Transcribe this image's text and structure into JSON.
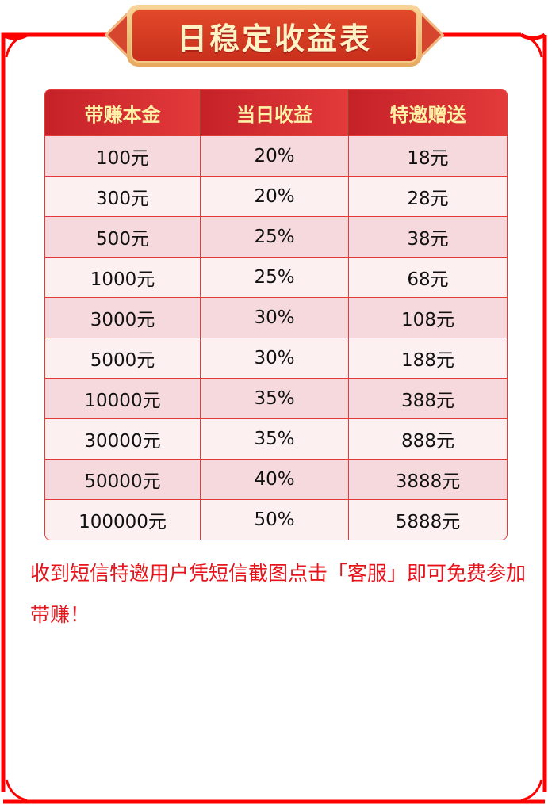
{
  "title": "日稳定收益表",
  "table": {
    "headers": [
      "带赚本金",
      "当日收益",
      "特邀赠送"
    ],
    "rows": [
      [
        "100元",
        "20%",
        "18元"
      ],
      [
        "300元",
        "20%",
        "28元"
      ],
      [
        "500元",
        "25%",
        "38元"
      ],
      [
        "1000元",
        "25%",
        "68元"
      ],
      [
        "3000元",
        "30%",
        "108元"
      ],
      [
        "5000元",
        "30%",
        "188元"
      ],
      [
        "10000元",
        "35%",
        "388元"
      ],
      [
        "30000元",
        "35%",
        "888元"
      ],
      [
        "50000元",
        "40%",
        "3888元"
      ],
      [
        "100000元",
        "50%",
        "5888元"
      ]
    ]
  },
  "note": "收到短信特邀用户凭短信截图点击「客服」即可免费参加带赚！",
  "colors": {
    "frame": "#ff0000",
    "header": "#d42c30",
    "note": "#e5131b"
  }
}
